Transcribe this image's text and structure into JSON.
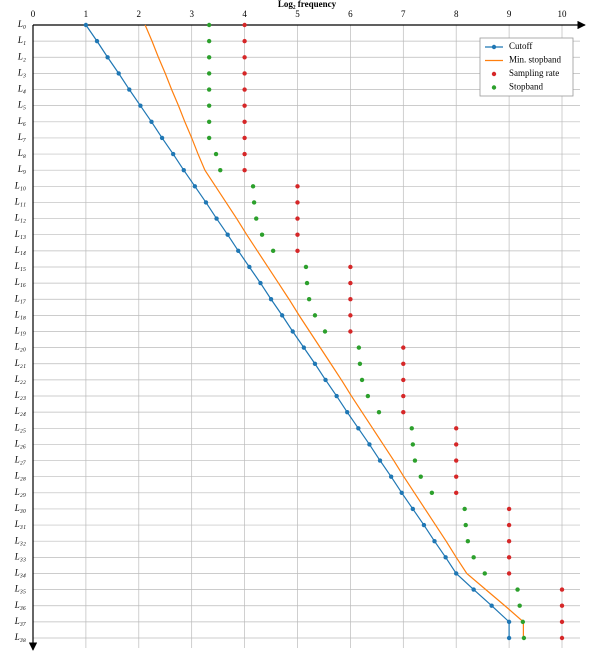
{
  "chart_data": {
    "type": "line",
    "title": "Log₂ frequency",
    "categories": [
      "L₀",
      "L₁",
      "L₂",
      "L₃",
      "L₄",
      "L₅",
      "L₆",
      "L₇",
      "L₈",
      "L₉",
      "L₁₀",
      "L₁₁",
      "L₁₂",
      "L₁₃",
      "L₁₄",
      "L₁₅",
      "L₁₆",
      "L₁₇",
      "L₁₈",
      "L₁₉",
      "L₂₀",
      "L₂₁",
      "L₂₂",
      "L₂₃",
      "L₂₄",
      "L₂₅",
      "L₂₆",
      "L₂₇",
      "L₂₈",
      "L₂₉",
      "L₃₀",
      "L₃₁",
      "L₃₂",
      "L₃₃",
      "L₃₄",
      "L₃₅",
      "L₃₆",
      "L₃₇",
      "L₃₈"
    ],
    "xlim": [
      0,
      10
    ],
    "xticks": [
      0,
      1,
      2,
      3,
      4,
      5,
      6,
      7,
      8,
      9,
      10
    ],
    "grid": true,
    "legend": "upper right",
    "series": [
      {
        "name": "Cutoff",
        "color": "#1f77b4",
        "style": "line-marker",
        "values": [
          1,
          1.21,
          1.41,
          1.62,
          1.82,
          2.03,
          2.24,
          2.44,
          2.65,
          2.85,
          3.06,
          3.27,
          3.47,
          3.68,
          3.88,
          4.09,
          4.3,
          4.5,
          4.71,
          4.91,
          5.12,
          5.33,
          5.53,
          5.74,
          5.94,
          6.15,
          6.36,
          6.56,
          6.77,
          6.97,
          7.18,
          7.39,
          7.59,
          7.8,
          8.0,
          8.33,
          8.67,
          9,
          9
        ]
      },
      {
        "name": "Min. stopband",
        "color": "#ff7f0e",
        "style": "line",
        "values": [
          2.12,
          2.25,
          2.37,
          2.5,
          2.62,
          2.75,
          2.87,
          3.0,
          3.12,
          3.25,
          3.45,
          3.65,
          3.85,
          4.04,
          4.24,
          4.44,
          4.64,
          4.84,
          5.03,
          5.23,
          5.43,
          5.63,
          5.83,
          6.02,
          6.22,
          6.42,
          6.62,
          6.82,
          7.01,
          7.21,
          7.41,
          7.61,
          7.81,
          8.0,
          8.2,
          8.56,
          8.92,
          9.27,
          9.27
        ]
      },
      {
        "name": "Sampling rate",
        "color": "#d62728",
        "style": "marker",
        "values": [
          4,
          4,
          4,
          4,
          4,
          4,
          4,
          4,
          4,
          4,
          5,
          5,
          5,
          5,
          5,
          6,
          6,
          6,
          6,
          6,
          7,
          7,
          7,
          7,
          7,
          8,
          8,
          8,
          8,
          8,
          9,
          9,
          9,
          9,
          9,
          10,
          10,
          10,
          10
        ]
      },
      {
        "name": "Stopband",
        "color": "#2ca02c",
        "style": "marker",
        "values": [
          3.33,
          3.33,
          3.33,
          3.33,
          3.33,
          3.33,
          3.33,
          3.33,
          3.46,
          3.54,
          4.16,
          4.18,
          4.22,
          4.33,
          4.54,
          5.16,
          5.18,
          5.22,
          5.33,
          5.52,
          6.16,
          6.18,
          6.22,
          6.33,
          6.54,
          7.16,
          7.18,
          7.22,
          7.33,
          7.54,
          8.16,
          8.18,
          8.22,
          8.33,
          8.54,
          9.16,
          9.2,
          9.26,
          9.28
        ]
      }
    ]
  }
}
